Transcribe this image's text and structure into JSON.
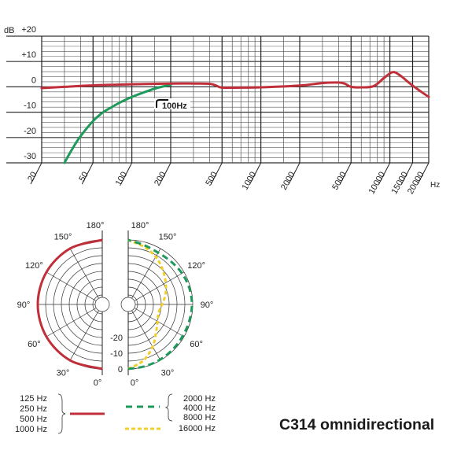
{
  "chart_data": [
    {
      "type": "line",
      "xscale": "log",
      "xlabel": "Hz",
      "ylabel": "dB",
      "xlim": [
        20,
        20000
      ],
      "ylim": [
        -30,
        20
      ],
      "grid": true,
      "y_ticks": [
        "+20",
        "+10",
        "0",
        "-10",
        "-20",
        "-30"
      ],
      "y_tick_values": [
        20,
        10,
        0,
        -10,
        -20,
        -30
      ],
      "x_ticks": [
        "20",
        "50",
        "100",
        "200",
        "500",
        "1000",
        "2000",
        "5000",
        "10000",
        "15000",
        "20000"
      ],
      "x_tick_values": [
        20,
        50,
        100,
        200,
        500,
        1000,
        2000,
        5000,
        10000,
        15000,
        20000
      ],
      "x_minor_grid": [
        30,
        40,
        60,
        70,
        80,
        90,
        150,
        300,
        400,
        600,
        700,
        800,
        900,
        1500,
        3000,
        4000,
        6000,
        7000,
        8000,
        9000
      ],
      "annotation": "100Hz",
      "series": [
        {
          "color": "#c0303a",
          "x": [
            20,
            30,
            50,
            100,
            200,
            300,
            400,
            450,
            500,
            700,
            1000,
            2000,
            3000,
            4000,
            4500,
            5000,
            6000,
            7500,
            9000,
            10500,
            12000,
            15000,
            20000
          ],
          "y": [
            -0.5,
            0,
            0.6,
            1.0,
            1.3,
            1.3,
            1.2,
            0.5,
            -0.3,
            -0.3,
            -0.2,
            0.5,
            1.5,
            1.7,
            1.2,
            0,
            -0.2,
            0.3,
            3.5,
            5.8,
            4.5,
            0.5,
            -4.0
          ]
        },
        {
          "color": "#1e9a5a",
          "x": [
            30,
            35,
            40,
            50,
            60,
            70,
            80,
            100,
            130,
            160,
            200
          ],
          "y": [
            -30,
            -24,
            -19.5,
            -13.5,
            -10,
            -8,
            -6.3,
            -4,
            -1.8,
            -0.3,
            0.8
          ]
        }
      ]
    },
    {
      "type": "polar",
      "angle_labels": [
        "0°",
        "30°",
        "60°",
        "90°",
        "120°",
        "150°",
        "180°"
      ],
      "angle_values": [
        0,
        30,
        60,
        90,
        120,
        150,
        180
      ],
      "radial_labels": [
        "0",
        "-10",
        "-20"
      ],
      "radial_values": [
        0,
        -10,
        -20
      ],
      "left_series": [
        {
          "color": "#c0303a",
          "style": "solid",
          "angles": [
            0,
            30,
            60,
            90,
            120,
            150,
            180
          ],
          "db": [
            0,
            0,
            0,
            0,
            0,
            0,
            0
          ]
        }
      ],
      "right_series": [
        {
          "color": "#1e9a5a",
          "style": "dashed",
          "angles": [
            0,
            15,
            30,
            45,
            60,
            75,
            90,
            105,
            120,
            135,
            150,
            165,
            180
          ],
          "db": [
            0,
            -0.3,
            -0.5,
            -0.8,
            -1,
            -0.8,
            -0.5,
            -0.8,
            -1.5,
            -2.5,
            -3,
            -2,
            0
          ]
        },
        {
          "color": "#f2cf2a",
          "style": "dashed",
          "angles": [
            0,
            15,
            30,
            45,
            60,
            75,
            90,
            105,
            120,
            135,
            150,
            165,
            180
          ],
          "db": [
            0,
            -4,
            -10,
            -16,
            -19.5,
            -21,
            -19.5,
            -16.5,
            -13.5,
            -10,
            -6,
            -3,
            0
          ]
        }
      ],
      "legend": {
        "group_red": [
          "125 Hz",
          "250 Hz",
          "500 Hz",
          "1000 Hz"
        ],
        "group_green": [
          "2000 Hz",
          "4000 Hz",
          "8000 Hz"
        ],
        "group_yellow": [
          "16000 Hz"
        ]
      }
    }
  ],
  "caption": "C314 omnidirectional"
}
